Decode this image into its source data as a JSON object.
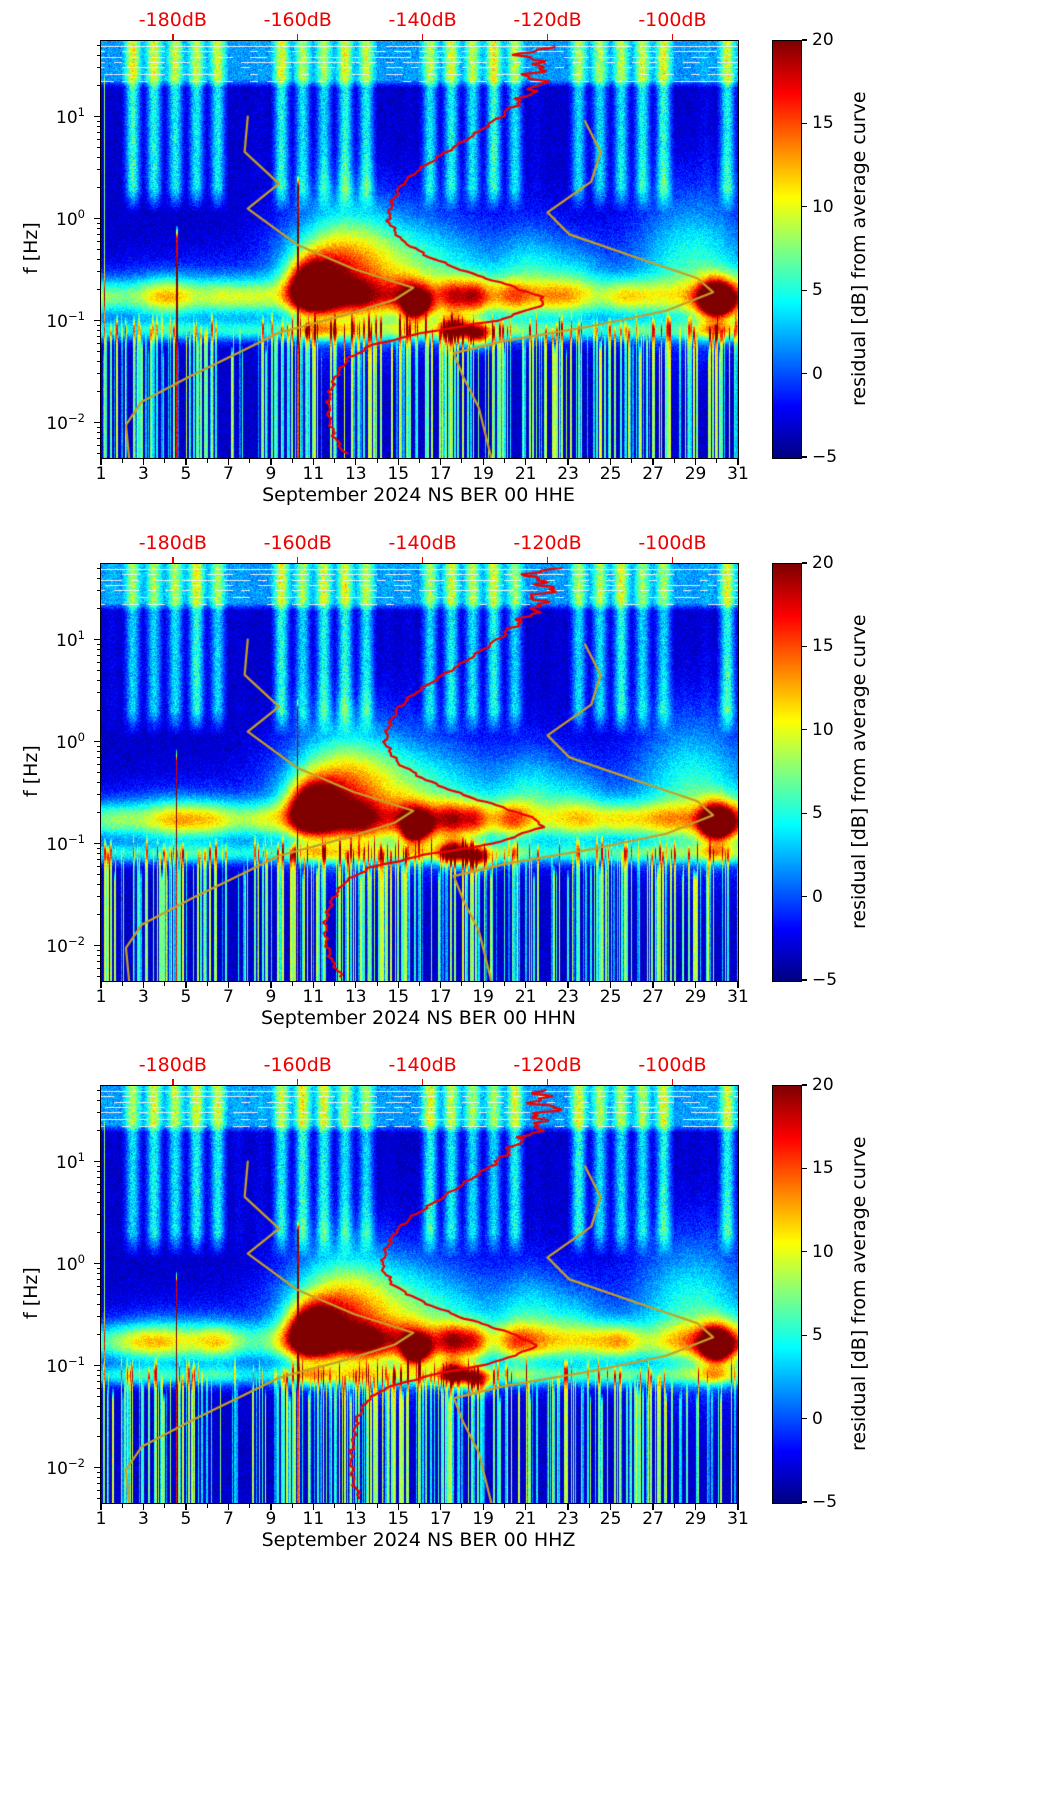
{
  "noise_models": {
    "color": "#c79f27",
    "low": {
      "name": "low-noise-model",
      "points_db_hz": [
        [
          -168,
          10
        ],
        [
          -168.5,
          4.5
        ],
        [
          -163,
          2.2
        ],
        [
          -168,
          1.25
        ],
        [
          -160,
          0.55
        ],
        [
          -151,
          0.32
        ],
        [
          -141.5,
          0.21
        ],
        [
          -144.5,
          0.16
        ],
        [
          -152,
          0.115
        ],
        [
          -163,
          0.076
        ],
        [
          -169,
          0.05
        ],
        [
          -177,
          0.029
        ],
        [
          -185,
          0.016
        ],
        [
          -187.5,
          0.0095
        ],
        [
          -187,
          0.0045
        ]
      ]
    },
    "high": {
      "name": "high-noise-model",
      "points_db_hz": [
        [
          -114,
          9
        ],
        [
          -111.5,
          4.5
        ],
        [
          -113,
          2.3
        ],
        [
          -120,
          1.15
        ],
        [
          -116.5,
          0.7
        ],
        [
          -106,
          0.42
        ],
        [
          -96,
          0.26
        ],
        [
          -93.5,
          0.19
        ],
        [
          -101,
          0.125
        ],
        [
          -113,
          0.088
        ],
        [
          -127,
          0.063
        ],
        [
          -135,
          0.048
        ],
        [
          -133.5,
          0.028
        ],
        [
          -131,
          0.014
        ],
        [
          -129,
          0.0045
        ]
      ]
    }
  },
  "texture_common": {
    "stripe_amp": 6.5,
    "micro_base": 8.5,
    "storm_blobs": [
      [
        12.3,
        1.8,
        -0.45,
        0.42,
        12
      ],
      [
        11.6,
        0.9,
        -0.55,
        0.18,
        6
      ],
      [
        15.8,
        2.6,
        -0.5,
        0.42,
        7
      ],
      [
        28.9,
        2.0,
        -0.45,
        0.5,
        8
      ],
      [
        30.5,
        1.0,
        -0.8,
        0.2,
        6
      ],
      [
        21.3,
        1.1,
        -0.5,
        0.35,
        5
      ],
      [
        23.5,
        1.0,
        -0.6,
        0.3,
        4
      ],
      [
        17,
        8,
        -0.65,
        0.3,
        3
      ],
      [
        4.5,
        2.2,
        -0.75,
        0.2,
        4
      ],
      [
        10.8,
        0.7,
        -0.62,
        0.16,
        13
      ],
      [
        16.1,
        0.4,
        -0.85,
        0.1,
        12
      ],
      [
        15.6,
        0.3,
        -0.88,
        0.08,
        10
      ],
      [
        17.6,
        0.5,
        -1.08,
        0.09,
        14
      ],
      [
        18.8,
        0.45,
        -1.15,
        0.08,
        13
      ],
      [
        30.0,
        0.5,
        -0.82,
        0.09,
        14
      ]
    ],
    "micro_peaks": [
      [
        10.6,
        8,
        0.5
      ],
      [
        11.5,
        6,
        0.5
      ],
      [
        13.2,
        4,
        0.6
      ],
      [
        15.6,
        5,
        0.5
      ],
      [
        17.6,
        7,
        0.5
      ],
      [
        18.6,
        6,
        0.4
      ],
      [
        20.5,
        4,
        0.5
      ],
      [
        29.9,
        10,
        0.5
      ],
      [
        25.5,
        3,
        0.6
      ],
      [
        4.0,
        2,
        0.8
      ],
      [
        6.5,
        2,
        0.6
      ]
    ],
    "streak_freqs": [
      [
        49,
        0.97
      ],
      [
        43,
        0.5
      ],
      [
        38,
        0.55
      ],
      [
        34,
        0.45
      ],
      [
        30,
        0.55
      ],
      [
        26,
        0.5
      ],
      [
        22,
        0.4
      ]
    ],
    "spike_count": 170,
    "spike_clusters": [
      [
        9,
        20,
        60
      ],
      [
        23,
        28,
        25
      ],
      [
        2,
        6,
        25
      ]
    ],
    "tall_spikes": [
      [
        1.15,
        8,
        25
      ],
      [
        4.55,
        17,
        0.8
      ],
      [
        10.25,
        15,
        2.5
      ]
    ]
  },
  "chart_data": [
    {
      "type": "heatmap",
      "xlabel": "September 2024 NS BER 00 HHE",
      "ylabel": "f [Hz]",
      "x_range_days": [
        1,
        31
      ],
      "x_ticks": [
        1,
        3,
        5,
        7,
        9,
        11,
        13,
        15,
        17,
        19,
        21,
        23,
        25,
        27,
        29,
        31
      ],
      "y_scale": "log",
      "y_range_hz": [
        0.0045,
        55
      ],
      "y_tick_exponents": [
        -2,
        -1,
        0,
        1
      ],
      "top_axis": {
        "color": "#ee0000",
        "labels": [
          "-180dB",
          "-160dB",
          "-140dB",
          "-120dB",
          "-100dB"
        ],
        "db_values": [
          -180,
          -160,
          -140,
          -120,
          -100
        ],
        "db_range": [
          -191.5,
          -89.5
        ]
      },
      "colorbar": {
        "label": "residual [dB] from average curve",
        "colormap": "jet",
        "range": [
          -5,
          20
        ],
        "tick_values": [
          20,
          15,
          10,
          5,
          0,
          -5
        ],
        "tick_labels": [
          "20",
          "15",
          "10",
          "5",
          "0",
          "−5"
        ]
      },
      "psd_curve": {
        "name": "station-average-psd",
        "color": "#ee0000",
        "points_db_hz": [
          [
            -121,
            48
          ],
          [
            -124,
            38
          ],
          [
            -120,
            32
          ],
          [
            -123,
            26
          ],
          [
            -121,
            21
          ],
          [
            -124,
            15
          ],
          [
            -127.5,
            10
          ],
          [
            -132,
            6.5
          ],
          [
            -137,
            4.2
          ],
          [
            -141,
            2.9
          ],
          [
            -143.5,
            2.1
          ],
          [
            -145,
            1.4
          ],
          [
            -145.5,
            0.95
          ],
          [
            -143.5,
            0.62
          ],
          [
            -139,
            0.42
          ],
          [
            -133,
            0.3
          ],
          [
            -126,
            0.22
          ],
          [
            -121,
            0.17
          ],
          [
            -120.5,
            0.145
          ],
          [
            -128,
            0.1
          ],
          [
            -139,
            0.078
          ],
          [
            -148,
            0.058
          ],
          [
            -152,
            0.042
          ],
          [
            -154,
            0.028
          ],
          [
            -155,
            0.018
          ],
          [
            -155,
            0.011
          ],
          [
            -154,
            0.007
          ],
          [
            -152.5,
            0.005
          ]
        ]
      },
      "texture": {
        "seed": 7
      }
    },
    {
      "type": "heatmap",
      "xlabel": "September 2024 NS BER 00 HHN",
      "ylabel": "f [Hz]",
      "x_range_days": [
        1,
        31
      ],
      "x_ticks": [
        1,
        3,
        5,
        7,
        9,
        11,
        13,
        15,
        17,
        19,
        21,
        23,
        25,
        27,
        29,
        31
      ],
      "y_scale": "log",
      "y_range_hz": [
        0.0045,
        55
      ],
      "y_tick_exponents": [
        -2,
        -1,
        0,
        1
      ],
      "top_axis": {
        "color": "#ee0000",
        "labels": [
          "-180dB",
          "-160dB",
          "-140dB",
          "-120dB",
          "-100dB"
        ],
        "db_values": [
          -180,
          -160,
          -140,
          -120,
          -100
        ],
        "db_range": [
          -191.5,
          -89.5
        ]
      },
      "colorbar": {
        "label": "residual [dB] from average curve",
        "colormap": "jet",
        "range": [
          -5,
          20
        ],
        "tick_values": [
          20,
          15,
          10,
          5,
          0,
          -5
        ],
        "tick_labels": [
          "20",
          "15",
          "10",
          "5",
          "0",
          "−5"
        ]
      },
      "psd_curve": {
        "name": "station-average-psd",
        "color": "#ee0000",
        "points_db_hz": [
          [
            -120,
            50
          ],
          [
            -123,
            40
          ],
          [
            -119,
            33
          ],
          [
            -122,
            26
          ],
          [
            -121,
            21
          ],
          [
            -124.5,
            15
          ],
          [
            -128,
            10
          ],
          [
            -132.5,
            6.5
          ],
          [
            -137.5,
            4.2
          ],
          [
            -141.5,
            2.9
          ],
          [
            -144,
            2.1
          ],
          [
            -145.5,
            1.4
          ],
          [
            -146,
            0.95
          ],
          [
            -144,
            0.62
          ],
          [
            -139.5,
            0.42
          ],
          [
            -133.5,
            0.3
          ],
          [
            -126.5,
            0.22
          ],
          [
            -121.5,
            0.17
          ],
          [
            -121,
            0.145
          ],
          [
            -128.5,
            0.1
          ],
          [
            -139.5,
            0.078
          ],
          [
            -148.5,
            0.058
          ],
          [
            -152.5,
            0.042
          ],
          [
            -154.5,
            0.028
          ],
          [
            -155.5,
            0.018
          ],
          [
            -155.5,
            0.011
          ],
          [
            -154.5,
            0.007
          ],
          [
            -153,
            0.005
          ]
        ]
      },
      "texture": {
        "seed": 131
      }
    },
    {
      "type": "heatmap",
      "xlabel": "September 2024 NS BER 00 HHZ",
      "ylabel": "f [Hz]",
      "x_range_days": [
        1,
        31
      ],
      "x_ticks": [
        1,
        3,
        5,
        7,
        9,
        11,
        13,
        15,
        17,
        19,
        21,
        23,
        25,
        27,
        29,
        31
      ],
      "y_scale": "log",
      "y_range_hz": [
        0.0045,
        55
      ],
      "y_tick_exponents": [
        -2,
        -1,
        0,
        1
      ],
      "top_axis": {
        "color": "#ee0000",
        "labels": [
          "-180dB",
          "-160dB",
          "-140dB",
          "-120dB",
          "-100dB"
        ],
        "db_values": [
          -180,
          -160,
          -140,
          -120,
          -100
        ],
        "db_range": [
          -191.5,
          -89.5
        ]
      },
      "colorbar": {
        "label": "residual [dB] from average curve",
        "colormap": "jet",
        "range": [
          -5,
          20
        ],
        "tick_values": [
          20,
          15,
          10,
          5,
          0,
          -5
        ],
        "tick_labels": [
          "20",
          "15",
          "10",
          "5",
          "0",
          "−5"
        ]
      },
      "psd_curve": {
        "name": "station-average-psd",
        "color": "#ee0000",
        "points_db_hz": [
          [
            -120,
            50
          ],
          [
            -122,
            40
          ],
          [
            -119,
            33
          ],
          [
            -122,
            27
          ],
          [
            -121,
            22
          ],
          [
            -125,
            15
          ],
          [
            -128,
            10
          ],
          [
            -133,
            6.3
          ],
          [
            -138,
            4
          ],
          [
            -142,
            2.8
          ],
          [
            -144.5,
            2
          ],
          [
            -146,
            1.3
          ],
          [
            -146.5,
            0.9
          ],
          [
            -144.5,
            0.6
          ],
          [
            -140,
            0.42
          ],
          [
            -134,
            0.3
          ],
          [
            -127,
            0.22
          ],
          [
            -122.5,
            0.17
          ],
          [
            -122,
            0.15
          ],
          [
            -129,
            0.105
          ],
          [
            -139,
            0.08
          ],
          [
            -146,
            0.06
          ],
          [
            -149,
            0.045
          ],
          [
            -150.5,
            0.03
          ],
          [
            -151,
            0.02
          ],
          [
            -151.5,
            0.012
          ],
          [
            -151,
            0.007
          ],
          [
            -150,
            0.005
          ]
        ]
      },
      "texture": {
        "seed": 977
      }
    }
  ]
}
